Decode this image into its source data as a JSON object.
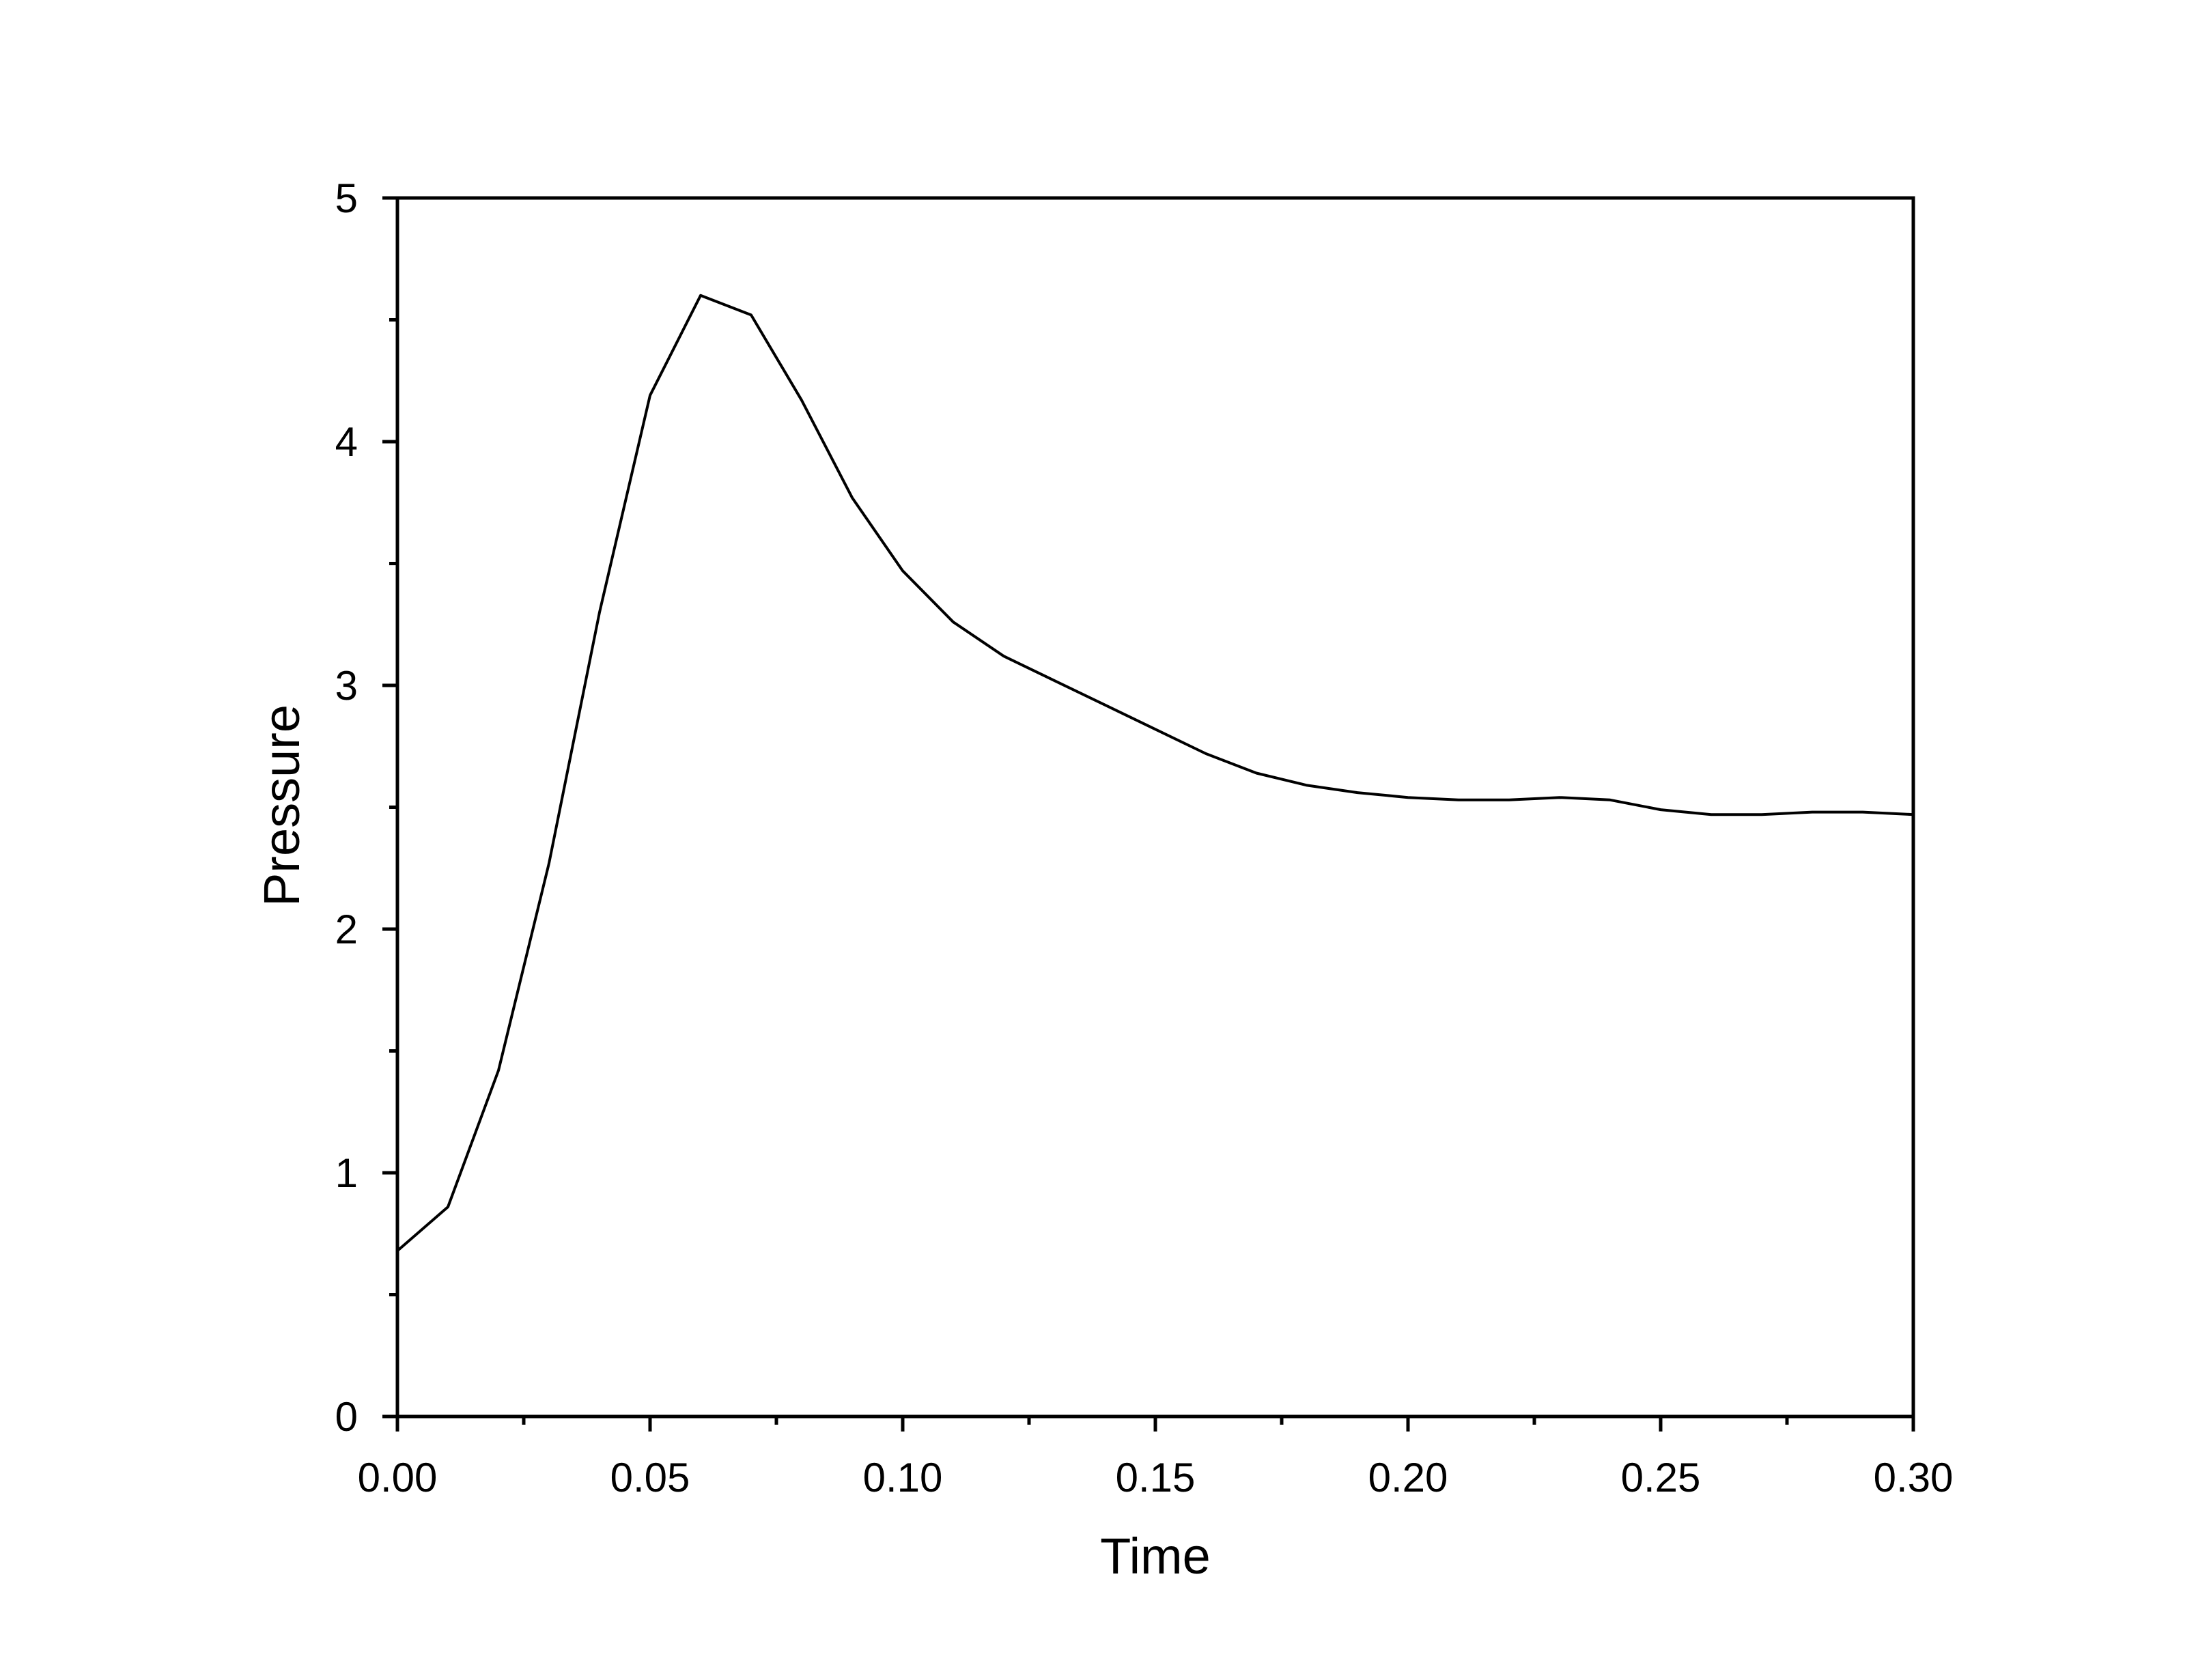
{
  "chart_data": {
    "type": "line",
    "title": "",
    "xlabel": "Time",
    "ylabel": "Pressure",
    "xlim": [
      0,
      0.3
    ],
    "ylim": [
      0,
      5
    ],
    "x_ticks": [
      "0.00",
      "0.05",
      "0.10",
      "0.15",
      "0.20",
      "0.25",
      "0.30"
    ],
    "y_ticks": [
      "0",
      "1",
      "2",
      "3",
      "4",
      "5"
    ],
    "grid": false,
    "legend": "none",
    "series": [
      {
        "color": "#000000",
        "x": [
          0.0,
          0.01,
          0.02,
          0.03,
          0.04,
          0.05,
          0.06,
          0.07,
          0.08,
          0.09,
          0.1,
          0.11,
          0.12,
          0.13,
          0.14,
          0.15,
          0.16,
          0.17,
          0.18,
          0.19,
          0.2,
          0.21,
          0.22,
          0.23,
          0.24,
          0.25,
          0.26,
          0.27,
          0.28,
          0.29,
          0.3
        ],
        "y": [
          0.68,
          0.86,
          1.42,
          2.27,
          3.3,
          4.19,
          4.6,
          4.52,
          4.17,
          3.77,
          3.47,
          3.26,
          3.12,
          3.02,
          2.92,
          2.82,
          2.72,
          2.64,
          2.59,
          2.56,
          2.54,
          2.53,
          2.53,
          2.54,
          2.53,
          2.49,
          2.47,
          2.47,
          2.48,
          2.48,
          2.47
        ]
      }
    ]
  }
}
